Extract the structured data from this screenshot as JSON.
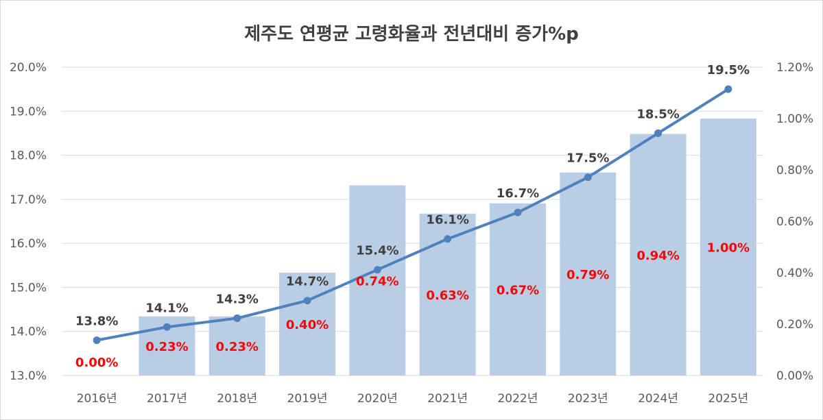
{
  "chart_data": {
    "type": "bar+line",
    "title": "제주도 연평균 고령화율과 전년대비 증가%p",
    "categories": [
      "2016년",
      "2017년",
      "2018년",
      "2019년",
      "2020년",
      "2021년",
      "2022년",
      "2023년",
      "2024년",
      "2025년"
    ],
    "series": [
      {
        "name": "전년대비 증가%p",
        "type": "bar",
        "axis": "right",
        "values": [
          0.0,
          0.23,
          0.23,
          0.4,
          0.74,
          0.63,
          0.67,
          0.79,
          0.94,
          1.0
        ],
        "labels": [
          "0.00%",
          "0.23%",
          "0.23%",
          "0.40%",
          "0.74%",
          "0.63%",
          "0.67%",
          "0.79%",
          "0.94%",
          "1.00%"
        ],
        "color": "#b9cde5",
        "label_color": "#ff0000"
      },
      {
        "name": "연평균 고령화율",
        "type": "line",
        "axis": "left",
        "values": [
          13.8,
          14.1,
          14.3,
          14.7,
          15.4,
          16.1,
          16.7,
          17.5,
          18.5,
          19.5
        ],
        "labels": [
          "13.8%",
          "14.1%",
          "14.3%",
          "14.7%",
          "15.4%",
          "16.1%",
          "16.7%",
          "17.5%",
          "18.5%",
          "19.5%"
        ],
        "color": "#4f81bd",
        "label_color": "#404040"
      }
    ],
    "y_left": {
      "min": 13.0,
      "max": 20.0,
      "ticks": [
        "13.0%",
        "14.0%",
        "15.0%",
        "16.0%",
        "17.0%",
        "18.0%",
        "19.0%",
        "20.0%"
      ]
    },
    "y_right": {
      "min": 0.0,
      "max": 1.2,
      "ticks": [
        "0.00%",
        "0.20%",
        "0.40%",
        "0.60%",
        "0.80%",
        "1.00%",
        "1.20%"
      ]
    },
    "grid": true,
    "gridline_color": "#d9d9d9"
  }
}
